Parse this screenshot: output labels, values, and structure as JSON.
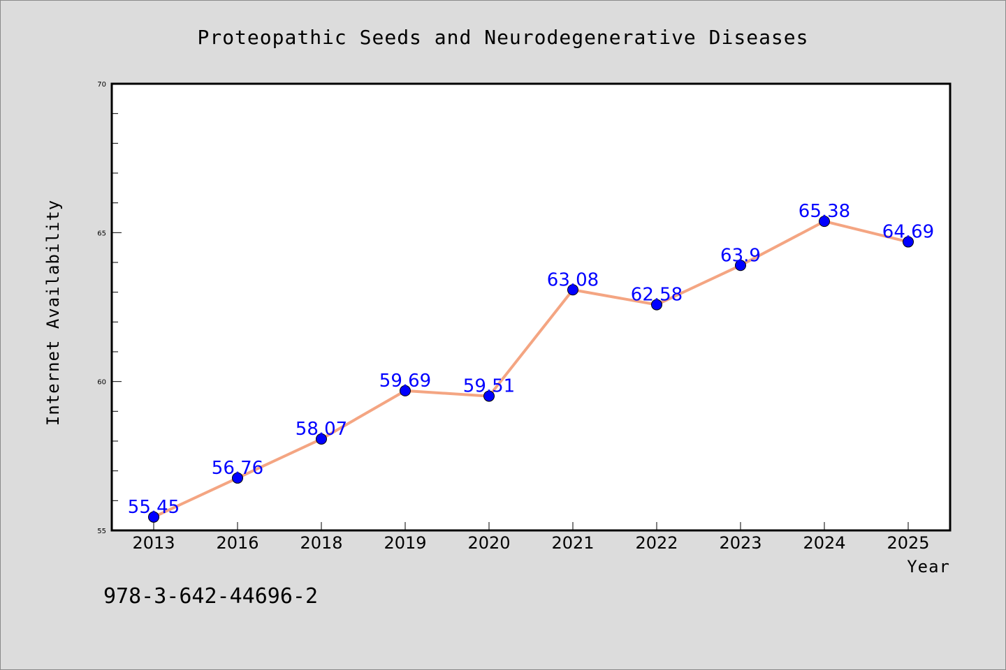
{
  "chart_data": {
    "type": "line",
    "title": "Proteopathic Seeds and Neurodegenerative Diseases",
    "xlabel": "Year",
    "ylabel": "Internet Availability",
    "categories": [
      "2013",
      "2016",
      "2018",
      "2019",
      "2020",
      "2021",
      "2022",
      "2023",
      "2024",
      "2025"
    ],
    "series": [
      {
        "values": [
          55.45,
          56.76,
          58.07,
          59.69,
          59.51,
          63.08,
          62.58,
          63.9,
          65.38,
          64.69
        ],
        "line_color": "#f4a582",
        "marker_color": "#0000ff"
      }
    ],
    "data_labels": [
      "55.45",
      "56.76",
      "58.07",
      "59.69",
      "59.51",
      "63.08",
      "62.58",
      "63.9",
      "65.38",
      "64.69"
    ],
    "ylim": [
      55,
      70
    ],
    "yticks": [
      "55",
      "60",
      "65",
      "70"
    ],
    "grid": false,
    "legend": "none"
  },
  "footer": {
    "code": "978-3-642-44696-2"
  },
  "colors": {
    "background": "#dcdcdc",
    "plot_background": "#ffffff",
    "line": "#f4a582",
    "marker": "#0000ff",
    "data_label": "#0000ff"
  }
}
